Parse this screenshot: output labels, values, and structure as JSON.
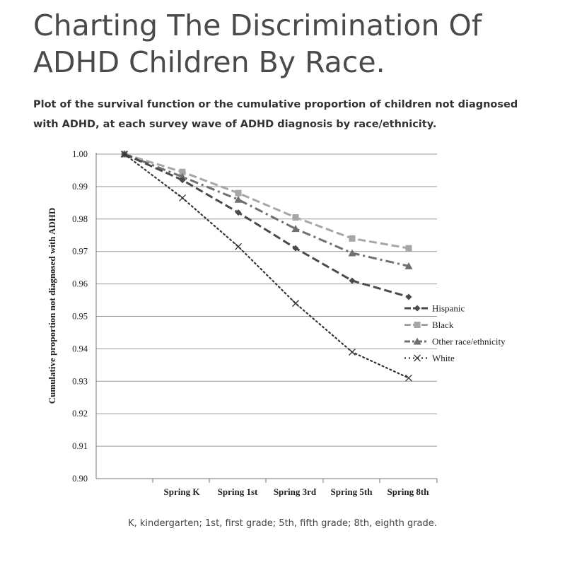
{
  "page": {
    "title": "Charting The Discrimination Of ADHD Children By Race.",
    "subtitle": "Plot of the survival function or the cumulative proportion of children not diagnosed with ADHD, at each survey wave of ADHD diagnosis by race/ethnicity.",
    "footnote": "K, kindergarten; 1st, first grade; 5th, fifth grade; 8th, eighth grade."
  },
  "chart_data": {
    "type": "line",
    "title": "",
    "xlabel": "",
    "ylabel": "Cumulative proportion not diagnosed with ADHD",
    "categories": [
      "Spring K",
      "Spring 1st",
      "Spring 3rd",
      "Spring 5th",
      "Spring 8th"
    ],
    "ylim": [
      0.9,
      1.0
    ],
    "yticks": [
      "0.90",
      "0.91",
      "0.92",
      "0.93",
      "0.94",
      "0.95",
      "0.96",
      "0.97",
      "0.98",
      "0.99",
      "1.00"
    ],
    "grid": "horizontal",
    "legend_position": "right",
    "note": "All series start at 1.00 at the origin before Spring K",
    "start_value": 1.0,
    "series": [
      {
        "name": "Hispanic",
        "values": [
          0.992,
          0.982,
          0.971,
          0.961,
          0.956
        ],
        "color": "#4a4a4a",
        "dash": "dash",
        "marker": "diamond"
      },
      {
        "name": "Black",
        "values": [
          0.9945,
          0.988,
          0.9805,
          0.974,
          0.971
        ],
        "color": "#a6a6a6",
        "dash": "dash",
        "marker": "square"
      },
      {
        "name": "Other race/ethnicity",
        "values": [
          0.993,
          0.986,
          0.977,
          0.9695,
          0.9655
        ],
        "color": "#6f6f6f",
        "dash": "dashdot",
        "marker": "triangle"
      },
      {
        "name": "White",
        "values": [
          0.9865,
          0.9715,
          0.954,
          0.939,
          0.931
        ],
        "color": "#333333",
        "dash": "dot",
        "marker": "x"
      }
    ]
  }
}
